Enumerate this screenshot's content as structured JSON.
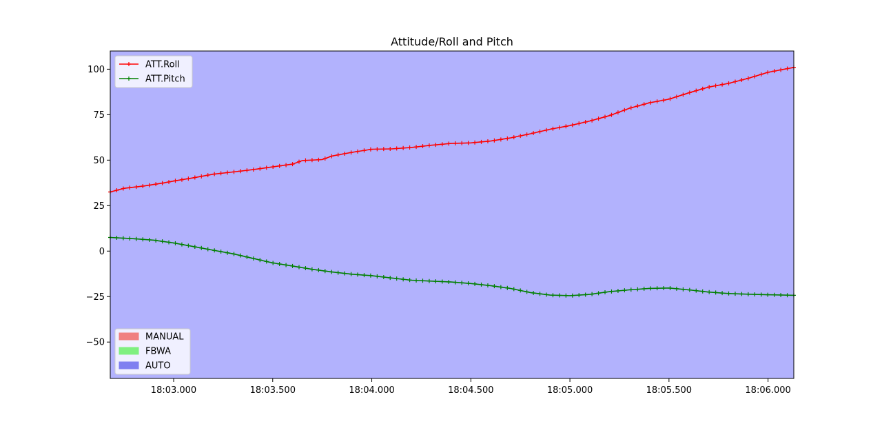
{
  "chart_data": {
    "type": "line",
    "title": "Attitude/Roll and Pitch",
    "xlabel": "",
    "ylabel": "",
    "x_axis": {
      "start_seconds": 2.68,
      "end_seconds": 6.13,
      "ticks": [
        {
          "t": 3.0,
          "label": "18:03.000"
        },
        {
          "t": 3.5,
          "label": "18:03.500"
        },
        {
          "t": 4.0,
          "label": "18:04.000"
        },
        {
          "t": 4.5,
          "label": "18:04.500"
        },
        {
          "t": 5.0,
          "label": "18:05.000"
        },
        {
          "t": 5.5,
          "label": "18:05.500"
        },
        {
          "t": 6.0,
          "label": "18:06.000"
        }
      ]
    },
    "ylim": [
      -70,
      110
    ],
    "yticks": [
      {
        "v": 100,
        "label": "100"
      },
      {
        "v": 75,
        "label": "75"
      },
      {
        "v": 50,
        "label": "50"
      },
      {
        "v": 25,
        "label": "25"
      },
      {
        "v": 0,
        "label": "0"
      },
      {
        "v": -25,
        "label": "−25"
      },
      {
        "v": -50,
        "label": "−50"
      }
    ],
    "grid": false,
    "background_mode": "AUTO",
    "series": [
      {
        "name": "ATT.Roll",
        "color": "#ff0000",
        "marker": "+",
        "points": [
          [
            2.68,
            32.5
          ],
          [
            2.75,
            34.5
          ],
          [
            2.85,
            35.8
          ],
          [
            2.95,
            37.5
          ],
          [
            3.0,
            38.5
          ],
          [
            3.1,
            40.3
          ],
          [
            3.2,
            42.3
          ],
          [
            3.3,
            43.5
          ],
          [
            3.4,
            44.8
          ],
          [
            3.5,
            46.3
          ],
          [
            3.6,
            47.8
          ],
          [
            3.65,
            49.8
          ],
          [
            3.75,
            50.3
          ],
          [
            3.8,
            52.3
          ],
          [
            3.9,
            54.3
          ],
          [
            4.0,
            56.0
          ],
          [
            4.1,
            56.2
          ],
          [
            4.2,
            57.0
          ],
          [
            4.3,
            58.2
          ],
          [
            4.4,
            59.2
          ],
          [
            4.5,
            59.5
          ],
          [
            4.6,
            60.5
          ],
          [
            4.7,
            62.2
          ],
          [
            4.8,
            64.5
          ],
          [
            4.9,
            67.0
          ],
          [
            5.0,
            69.0
          ],
          [
            5.1,
            71.5
          ],
          [
            5.2,
            74.5
          ],
          [
            5.3,
            78.5
          ],
          [
            5.4,
            81.5
          ],
          [
            5.5,
            83.5
          ],
          [
            5.6,
            87.0
          ],
          [
            5.7,
            90.2
          ],
          [
            5.8,
            92.2
          ],
          [
            5.9,
            95.0
          ],
          [
            6.0,
            98.3
          ],
          [
            6.13,
            101.0
          ]
        ]
      },
      {
        "name": "ATT.Pitch",
        "color": "#008000",
        "marker": "+",
        "points": [
          [
            2.68,
            7.5
          ],
          [
            2.8,
            6.8
          ],
          [
            2.9,
            6.0
          ],
          [
            3.0,
            4.5
          ],
          [
            3.1,
            2.5
          ],
          [
            3.2,
            0.5
          ],
          [
            3.3,
            -1.5
          ],
          [
            3.4,
            -4.0
          ],
          [
            3.5,
            -6.5
          ],
          [
            3.6,
            -8.2
          ],
          [
            3.7,
            -10.0
          ],
          [
            3.8,
            -11.5
          ],
          [
            3.9,
            -12.7
          ],
          [
            4.0,
            -13.5
          ],
          [
            4.1,
            -14.8
          ],
          [
            4.2,
            -16.0
          ],
          [
            4.3,
            -16.5
          ],
          [
            4.4,
            -17.0
          ],
          [
            4.5,
            -17.8
          ],
          [
            4.6,
            -19.0
          ],
          [
            4.7,
            -20.5
          ],
          [
            4.8,
            -22.8
          ],
          [
            4.9,
            -24.2
          ],
          [
            5.0,
            -24.5
          ],
          [
            5.1,
            -23.8
          ],
          [
            5.2,
            -22.3
          ],
          [
            5.3,
            -21.3
          ],
          [
            5.4,
            -20.5
          ],
          [
            5.5,
            -20.3
          ],
          [
            5.6,
            -21.3
          ],
          [
            5.7,
            -22.5
          ],
          [
            5.8,
            -23.3
          ],
          [
            5.9,
            -23.7
          ],
          [
            6.0,
            -24.0
          ],
          [
            6.13,
            -24.3
          ]
        ]
      }
    ],
    "mode_legend": [
      {
        "name": "MANUAL",
        "color": "#f08080"
      },
      {
        "name": "FBWA",
        "color": "#80f080"
      },
      {
        "name": "AUTO",
        "color": "#8080f0"
      }
    ],
    "legend_position": "upper-left",
    "mode_legend_position": "lower-left",
    "plot_background": "#b2b2fd"
  }
}
